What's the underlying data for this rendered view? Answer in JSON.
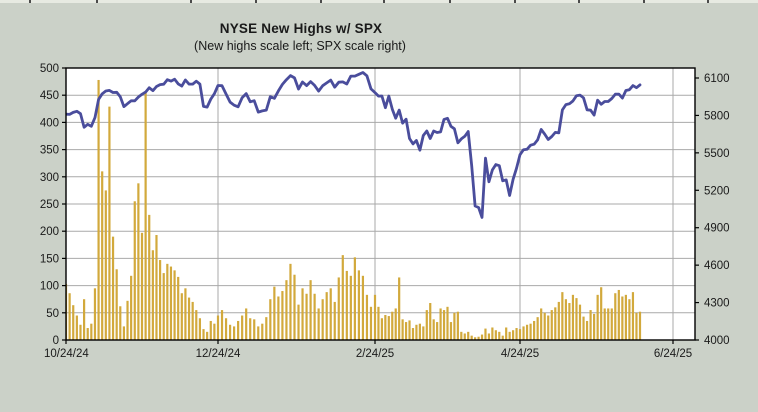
{
  "chart_data": {
    "type": "bar",
    "title": "NYSE New Highs w/ SPX",
    "subtitle": "(New highs scale left; SPX scale right)",
    "legend": "none",
    "grid": true,
    "x_dates": [
      "10/24/24",
      "10/25/24",
      "10/28/24",
      "10/29/24",
      "10/30/24",
      "10/31/24",
      "11/1/24",
      "11/4/24",
      "11/5/24",
      "11/6/24",
      "11/7/24",
      "11/8/24",
      "11/11/24",
      "11/12/24",
      "11/13/24",
      "11/14/24",
      "11/15/24",
      "11/18/24",
      "11/19/24",
      "11/20/24",
      "11/21/24",
      "11/22/24",
      "11/25/24",
      "11/26/24",
      "11/27/24",
      "11/29/24",
      "12/2/24",
      "12/3/24",
      "12/4/24",
      "12/5/24",
      "12/6/24",
      "12/9/24",
      "12/10/24",
      "12/11/24",
      "12/12/24",
      "12/13/24",
      "12/16/24",
      "12/17/24",
      "12/18/24",
      "12/19/24",
      "12/20/24",
      "12/23/24",
      "12/24/24",
      "12/26/24",
      "12/27/24",
      "12/30/24",
      "12/31/24",
      "1/2/25",
      "1/3/25",
      "1/6/25",
      "1/7/25",
      "1/8/25",
      "1/10/25",
      "1/13/25",
      "1/14/25",
      "1/15/25",
      "1/16/25",
      "1/17/25",
      "1/21/25",
      "1/22/25",
      "1/23/25",
      "1/24/25",
      "1/27/25",
      "1/28/25",
      "1/29/25",
      "1/30/25",
      "1/31/25",
      "2/3/25",
      "2/4/25",
      "2/5/25",
      "2/6/25",
      "2/7/25",
      "2/10/25",
      "2/11/25",
      "2/12/25",
      "2/13/25",
      "2/14/25",
      "2/18/25",
      "2/19/25",
      "2/20/25",
      "2/21/25",
      "2/24/25",
      "2/25/25",
      "2/26/25",
      "2/27/25",
      "2/28/25",
      "3/3/25",
      "3/4/25",
      "3/5/25",
      "3/6/25",
      "3/7/25",
      "3/10/25",
      "3/11/25",
      "3/12/25",
      "3/13/25",
      "3/14/25",
      "3/17/25",
      "3/18/25",
      "3/19/25",
      "3/20/25",
      "3/21/25",
      "3/24/25",
      "3/25/25",
      "3/26/25",
      "3/27/25",
      "3/28/25",
      "3/31/25",
      "4/1/25",
      "4/2/25",
      "4/3/25",
      "4/4/25",
      "4/7/25",
      "4/8/25",
      "4/9/25",
      "4/10/25",
      "4/11/25",
      "4/14/25",
      "4/15/25",
      "4/16/25",
      "4/17/25",
      "4/21/25",
      "4/22/25",
      "4/23/25",
      "4/24/25",
      "4/25/25",
      "4/28/25",
      "4/29/25",
      "4/30/25",
      "5/1/25",
      "5/2/25",
      "5/5/25",
      "5/6/25",
      "5/7/25",
      "5/8/25",
      "5/9/25",
      "5/12/25",
      "5/13/25",
      "5/14/25",
      "5/15/25",
      "5/16/25",
      "5/19/25",
      "5/20/25",
      "5/21/25",
      "5/22/25",
      "5/23/25",
      "5/27/25",
      "5/28/25",
      "5/29/25",
      "5/30/25",
      "6/2/25",
      "6/3/25",
      "6/4/25",
      "6/5/25",
      "6/6/25",
      "6/9/25",
      "6/10/25",
      "6/11/25",
      "6/12/25"
    ],
    "series": [
      {
        "name": "NYSE New Highs",
        "type": "bar",
        "axis": "left",
        "color": "#d2a93c",
        "values": [
          103,
          86,
          64,
          45,
          28,
          75,
          22,
          30,
          95,
          478,
          310,
          275,
          429,
          190,
          130,
          62,
          25,
          72,
          118,
          255,
          288,
          197,
          454,
          230,
          165,
          193,
          147,
          123,
          140,
          135,
          128,
          116,
          86,
          95,
          78,
          70,
          55,
          40,
          20,
          15,
          35,
          30,
          45,
          55,
          40,
          28,
          25,
          35,
          45,
          58,
          40,
          38,
          25,
          30,
          42,
          75,
          98,
          80,
          90,
          110,
          140,
          120,
          65,
          95,
          85,
          110,
          85,
          58,
          75,
          88,
          95,
          70,
          115,
          156,
          127,
          118,
          152,
          128,
          118,
          83,
          61,
          83,
          61,
          40,
          46,
          44,
          52,
          58,
          115,
          38,
          33,
          36,
          22,
          28,
          30,
          25,
          55,
          68,
          38,
          33,
          58,
          55,
          61,
          33,
          50,
          52,
          15,
          12,
          15,
          8,
          5,
          6,
          10,
          21,
          12,
          23,
          18,
          15,
          8,
          23,
          15,
          18,
          22,
          20,
          25,
          28,
          30,
          35,
          42,
          58,
          50,
          45,
          55,
          60,
          70,
          88,
          75,
          68,
          83,
          77,
          65,
          43,
          35,
          55,
          48,
          83,
          97,
          58,
          58,
          58,
          86,
          92,
          80,
          83,
          75,
          88,
          50,
          52
        ]
      },
      {
        "name": "SPX",
        "type": "line",
        "axis": "right",
        "color": "#4a4d9c",
        "values": [
          5810,
          5808,
          5824,
          5833,
          5814,
          5705,
          5729,
          5713,
          5783,
          5929,
          5973,
          5996,
          6001,
          5984,
          5985,
          5949,
          5871,
          5894,
          5917,
          5917,
          5948,
          5969,
          5987,
          6022,
          5998,
          6032,
          6047,
          6050,
          6086,
          6075,
          6090,
          6053,
          6035,
          6084,
          6051,
          6051,
          6074,
          6051,
          5872,
          5867,
          5931,
          5974,
          6040,
          6038,
          5971,
          5907,
          5882,
          5869,
          5943,
          5975,
          5909,
          5918,
          5827,
          5836,
          5843,
          5950,
          5937,
          5997,
          6049,
          6086,
          6119,
          6101,
          6012,
          6068,
          6039,
          6071,
          6041,
          5995,
          6038,
          6061,
          6083,
          6026,
          6066,
          6069,
          6052,
          6115,
          6115,
          6130,
          6144,
          6118,
          6013,
          5983,
          5955,
          5956,
          5862,
          5955,
          5850,
          5778,
          5843,
          5738,
          5770,
          5615,
          5572,
          5599,
          5521,
          5639,
          5675,
          5615,
          5675,
          5663,
          5668,
          5768,
          5777,
          5712,
          5693,
          5581,
          5612,
          5633,
          5671,
          5396,
          5074,
          5062,
          4983,
          5457,
          5268,
          5363,
          5406,
          5397,
          5276,
          5283,
          5158,
          5288,
          5376,
          5485,
          5525,
          5529,
          5561,
          5569,
          5604,
          5687,
          5650,
          5607,
          5631,
          5664,
          5660,
          5844,
          5887,
          5893,
          5916,
          5958,
          5963,
          5941,
          5845,
          5842,
          5803,
          5922,
          5889,
          5912,
          5912,
          5936,
          5970,
          5971,
          5939,
          6000,
          6006,
          6039,
          6022,
          6045
        ]
      }
    ],
    "left_axis": {
      "range": [
        0,
        500
      ],
      "ticks": [
        500,
        450,
        400,
        350,
        300,
        250,
        200,
        150,
        100,
        50,
        0
      ]
    },
    "right_axis": {
      "ticks": [
        6100,
        5800,
        5500,
        5200,
        4900,
        4600,
        4300,
        4000
      ]
    },
    "x_axis": {
      "ticks": [
        "10/24/24",
        "12/24/24",
        "2/24/25",
        "4/24/25",
        "6/24/25"
      ]
    },
    "colors": {
      "background": "#cbd1c8",
      "plot_background": "#ffffff",
      "grid": "#a9a9a9",
      "frame": "#000000",
      "text": "#1a1a1a"
    }
  }
}
